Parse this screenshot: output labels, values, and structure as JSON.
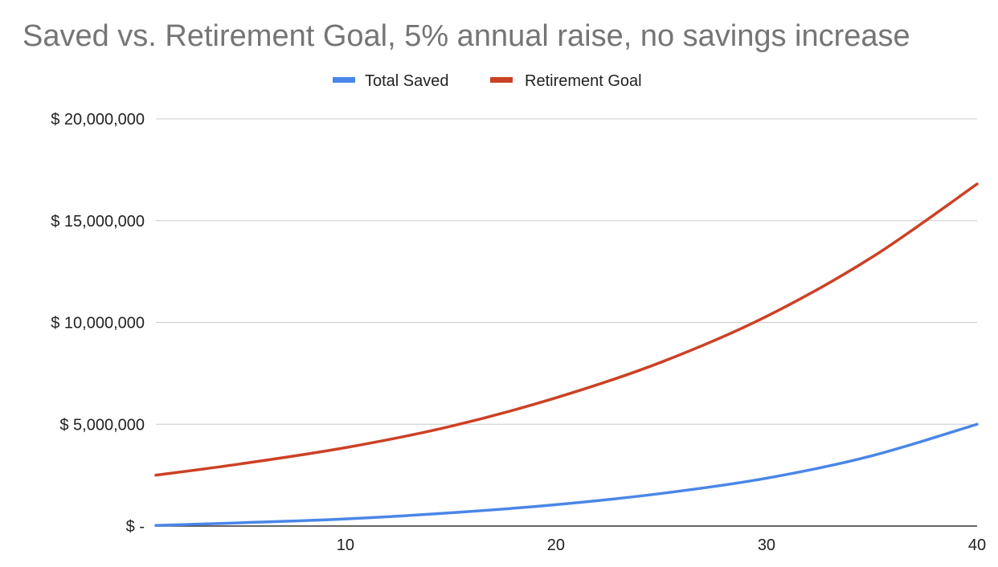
{
  "chart_data": {
    "type": "line",
    "title": "Saved vs. Retirement Goal, 5% annual raise, no savings increase",
    "xlabel": "",
    "ylabel": "",
    "xlim": [
      1,
      40
    ],
    "ylim": [
      0,
      20000000
    ],
    "x_ticks": [
      10,
      20,
      30,
      40
    ],
    "y_ticks": [
      {
        "value": 0,
        "label": "$ -"
      },
      {
        "value": 5000000,
        "label": "$ 5,000,000"
      },
      {
        "value": 10000000,
        "label": "$ 10,000,000"
      },
      {
        "value": 15000000,
        "label": "$ 15,000,000"
      },
      {
        "value": 20000000,
        "label": "$ 20,000,000"
      }
    ],
    "grid": true,
    "legend_position": "top",
    "x": [
      1,
      5,
      10,
      15,
      20,
      25,
      30,
      35,
      40
    ],
    "series": [
      {
        "name": "Total Saved",
        "color": "#4a86e8",
        "values": [
          30000,
          160000,
          350000,
          650000,
          1050000,
          1600000,
          2350000,
          3450000,
          5000000
        ]
      },
      {
        "name": "Retirement Goal",
        "color": "#cc4125",
        "values": [
          2500000,
          3050000,
          3850000,
          4900000,
          6300000,
          8050000,
          10300000,
          13200000,
          16800000
        ]
      }
    ]
  }
}
